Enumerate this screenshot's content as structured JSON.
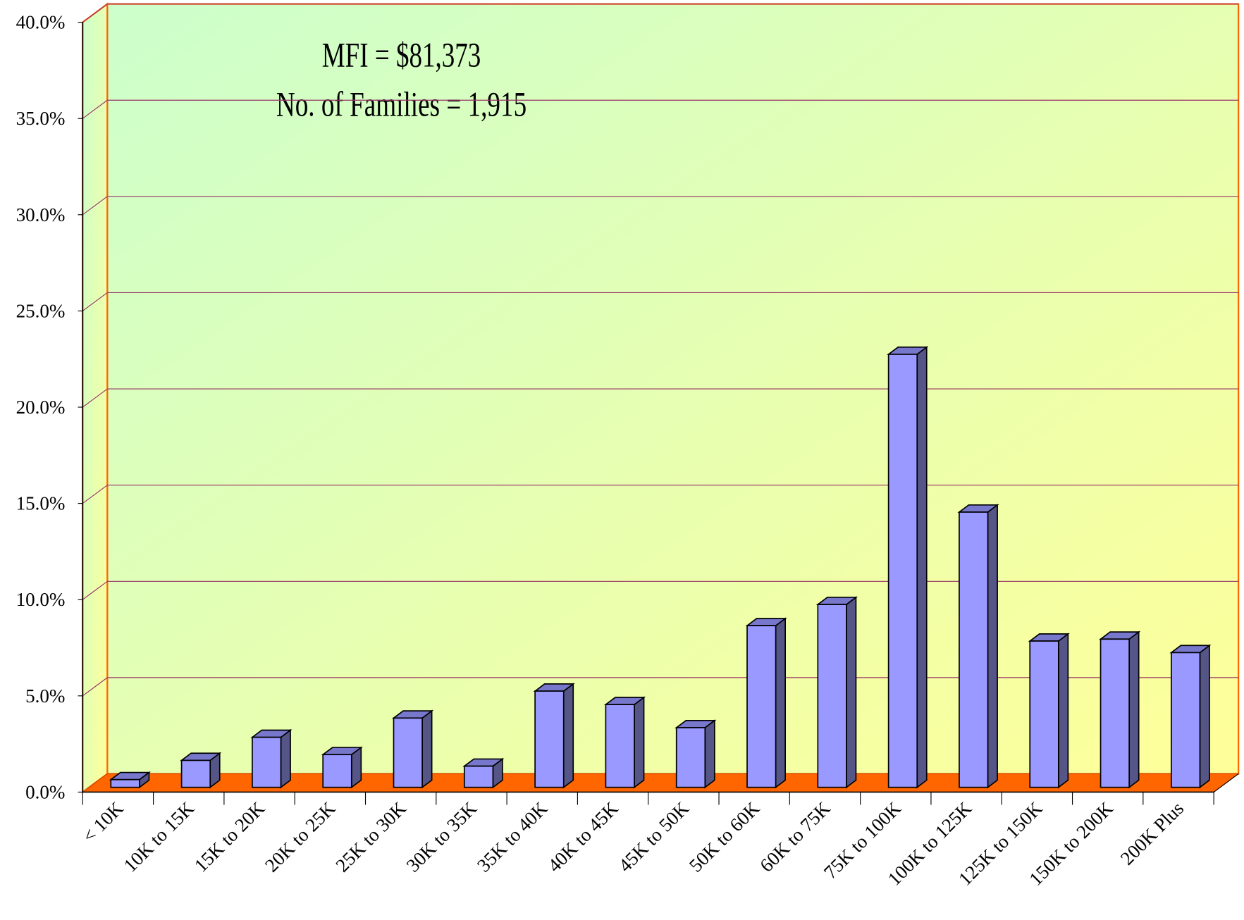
{
  "chart_data": {
    "type": "bar3d",
    "annotations": [
      "MFI = $81,373",
      "No. of Families = 1,915"
    ],
    "categories": [
      "< 10K",
      "10K to 15K",
      "15K to 20K",
      "20K to 25K",
      "25K to 30K",
      "30K to 35K",
      "35K to 40K",
      "40K to 45K",
      "45K to 50K",
      "50K to 60K",
      "60K to 75K",
      "75K to 100K",
      "100K to 125K",
      "125K to 150K",
      "150K to 200K",
      "200K Plus"
    ],
    "values": [
      0.4,
      1.4,
      2.6,
      1.7,
      3.6,
      1.1,
      5.0,
      4.3,
      3.1,
      8.4,
      9.5,
      22.5,
      14.3,
      7.6,
      7.7,
      7.0
    ],
    "color": "#9999ff",
    "ylim": [
      0,
      40
    ],
    "yticks": [
      {
        "value": 0,
        "label": "0.0%"
      },
      {
        "value": 5,
        "label": "5.0%"
      },
      {
        "value": 10,
        "label": "10.0%"
      },
      {
        "value": 15,
        "label": "15.0%"
      },
      {
        "value": 20,
        "label": "20.0%"
      },
      {
        "value": 25,
        "label": "25.0%"
      },
      {
        "value": 30,
        "label": "30.0%"
      },
      {
        "value": 35,
        "label": "35.0%"
      },
      {
        "value": 40,
        "label": "40.0%"
      }
    ],
    "grid": true
  }
}
